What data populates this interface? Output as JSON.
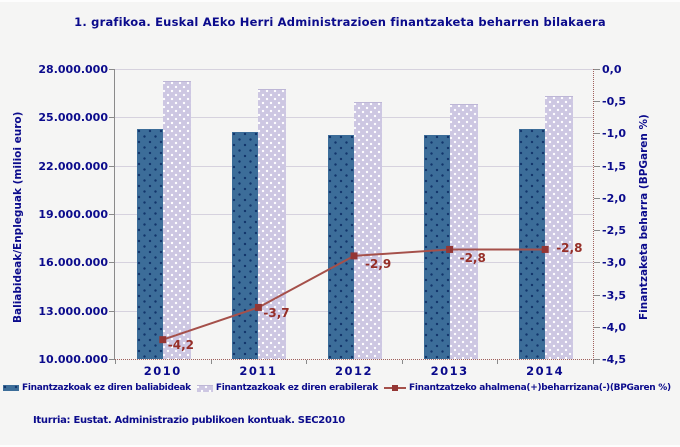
{
  "title": "1. grafikoa. Euskal AEko Herri Administrazioen finantzaketa beharren bilakaera",
  "source": "Iturria: Eustat. Administrazio publikoen kontuak. SEC2010",
  "colors": {
    "background": "#f5f5f4",
    "text_navy": "#0b0b8c",
    "bar_dark": "#3c6d99",
    "bar_dark_dots": "#12356b",
    "bar_light": "#cdc7e2",
    "bar_light_dots": "#ffffff",
    "line": "#a5504a",
    "line_marker": "#943634",
    "point_label": "#962f28",
    "gridline": "#d6d2de",
    "plot_border_dotted": "#a0605c"
  },
  "chart_data": {
    "type": "bar",
    "subtype": "grouped bars + line on secondary axis",
    "categories": [
      "2010",
      "2011",
      "2012",
      "2013",
      "2014"
    ],
    "bar_series": [
      {
        "name": "Finantzazkoak ez diren baliabideak",
        "color": "#3c6d99",
        "values": [
          24300000,
          24100000,
          23900000,
          23900000,
          24300000
        ]
      },
      {
        "name": "Finantzazkoak ez diren erabilerak",
        "color": "#cdc7e2",
        "values": [
          27200000,
          26700000,
          25900000,
          25750000,
          26250000
        ]
      }
    ],
    "line_series": {
      "name": "Finantzatzeko ahalmena(+)beharrizana(-)(BPGaren %)",
      "color": "#a5504a",
      "values": [
        -4.2,
        -3.7,
        -2.9,
        -2.8,
        -2.8
      ],
      "labels": [
        "-4,2",
        "-3,7",
        "-2,9",
        "-2,8",
        "-2,8"
      ],
      "label_dx": [
        5,
        5,
        11,
        10,
        11
      ],
      "label_dy": [
        5,
        6,
        8,
        9,
        -1
      ]
    },
    "left_axis": {
      "label": "Baliabideak/Enpleguak (milioi euro)",
      "min": 10000000,
      "max": 28000000,
      "tick_step": 3000000,
      "ticks": [
        "28.000.000",
        "25.000.000",
        "22.000.000",
        "19.000.000",
        "16.000.000",
        "13.000.000",
        "10.000.000"
      ]
    },
    "right_axis": {
      "label": "Finantzaketa beharra (BPGaren %)",
      "min": -4.5,
      "max": 0.0,
      "tick_step": 0.5,
      "ticks": [
        "0,0",
        "-0,5",
        "-1,0",
        "-1,5",
        "-2,0",
        "-2,5",
        "-3,0",
        "-3,5",
        "-4,0",
        "-4,5"
      ]
    },
    "grid": true,
    "legend_position": "bottom"
  }
}
